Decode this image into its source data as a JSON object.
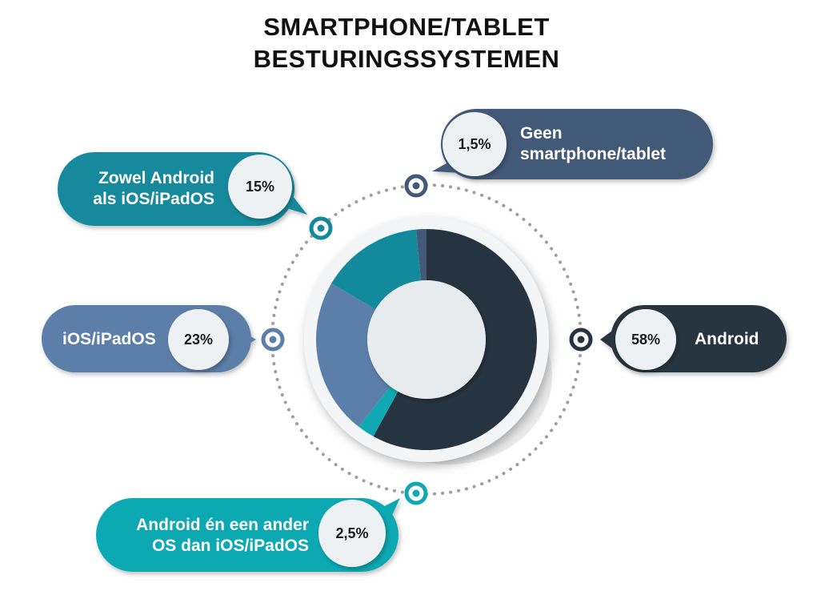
{
  "title": {
    "line1": "SMARTPHONE/TABLET",
    "line2": "BESTURINGSSYSTEMEN"
  },
  "colors": {
    "android": "#263441",
    "ios": "#5b7fa9",
    "both": "#138a9c",
    "other": "#10a9b3",
    "none": "#425a78",
    "dot_ring": "#9e9e9e",
    "center": "#e7ebee"
  },
  "chart_data": {
    "type": "pie",
    "title": "SMARTPHONE/TABLET BESTURINGSSYSTEMEN",
    "slices": [
      {
        "key": "android",
        "label": "Android",
        "value": 58,
        "value_label": "58%",
        "color": "#263441"
      },
      {
        "key": "other",
        "label": "Android én een ander OS dan iOS/iPadOS",
        "value": 2.5,
        "value_label": "2,5%",
        "color": "#10a9b3"
      },
      {
        "key": "ios",
        "label": "iOS/iPadOS",
        "value": 23,
        "value_label": "23%",
        "color": "#5b7fa9"
      },
      {
        "key": "both",
        "label": "Zowel Android als iOS/iPadOS",
        "value": 15,
        "value_label": "15%",
        "color": "#138a9c"
      },
      {
        "key": "none",
        "label": "Geen smartphone/tablet",
        "value": 1.5,
        "value_label": "1,5%",
        "color": "#425a78"
      }
    ],
    "labels": {
      "android": {
        "lines": [
          "Android"
        ],
        "pct": "58%"
      },
      "ios": {
        "lines": [
          "iOS/iPadOS"
        ],
        "pct": "23%"
      },
      "both": {
        "lines": [
          "Zowel Android",
          "als iOS/iPadOS"
        ],
        "pct": "15%"
      },
      "other": {
        "lines": [
          "Android én een ander",
          "OS dan iOS/iPadOS"
        ],
        "pct": "2,5%"
      },
      "none": {
        "lines": [
          "Geen",
          "smartphone/tablet"
        ],
        "pct": "1,5%"
      }
    }
  }
}
